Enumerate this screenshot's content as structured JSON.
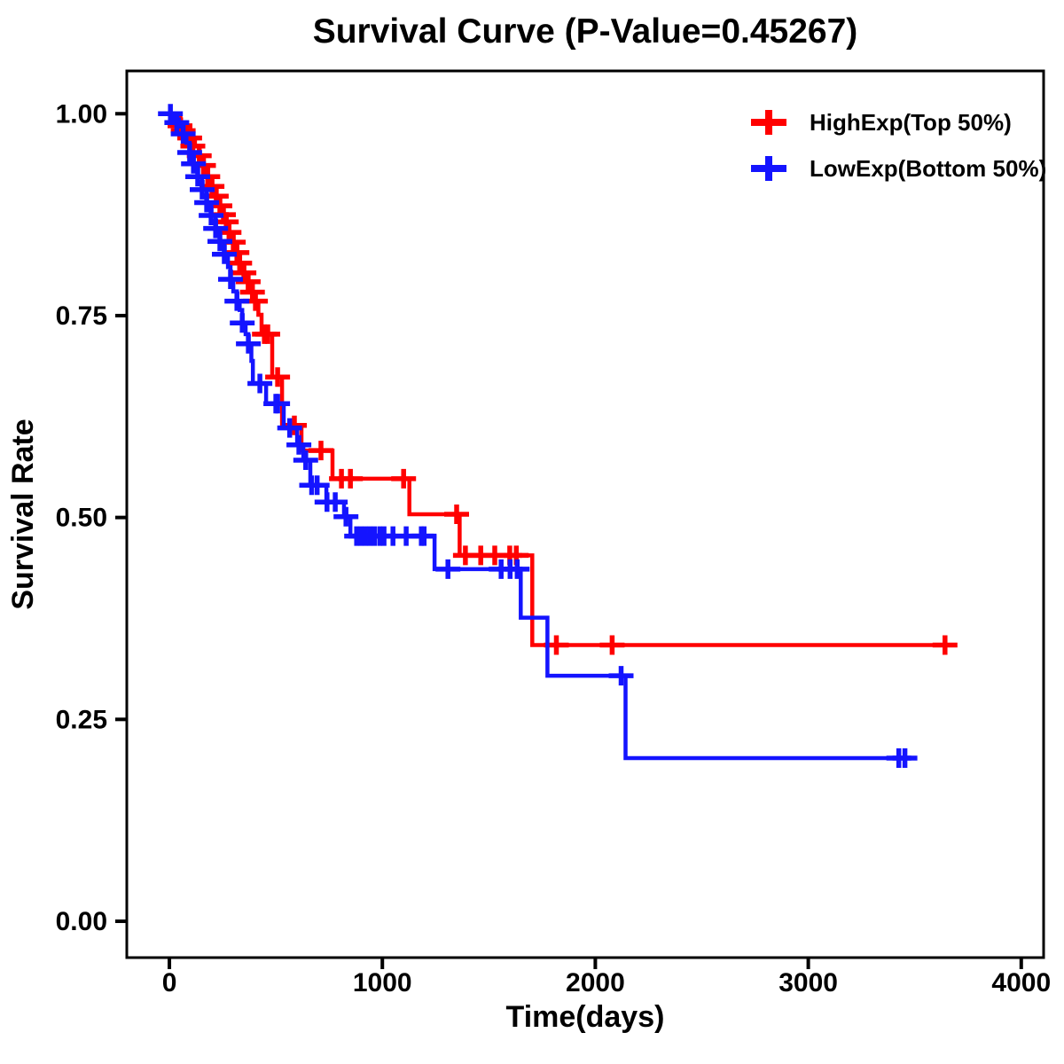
{
  "title": "Survival Curve (P-Value=0.45267)",
  "p_value": "0.45267",
  "background_color": "#FFFFFF",
  "x_axis": {
    "label": "Time(days)",
    "tick_labels": [
      "0",
      "1000",
      "2000",
      "3000",
      "4000"
    ],
    "tick_values": [
      0,
      1000,
      2000,
      3000,
      4000
    ]
  },
  "y_axis": {
    "label": "Survival Rate",
    "tick_labels": [
      "0.00",
      "0.25",
      "0.50",
      "0.75",
      "1.00"
    ],
    "tick_values": [
      0,
      0.25,
      0.5,
      0.75,
      1.0
    ]
  },
  "legend": {
    "position": "top-right-inside",
    "items": [
      {
        "label": "HighExp(Top 50%)",
        "color": "#FF0000",
        "marker": "plus"
      },
      {
        "label": "LowExp(Bottom 50%)",
        "color": "#1414FF",
        "marker": "plus"
      }
    ]
  },
  "chart_data": {
    "type": "line",
    "subtype": "kaplan-meier-step-curve",
    "title": "Survival Curve (P-Value=0.45267)",
    "xlabel": "Time(days)",
    "ylabel": "Survival Rate",
    "xlim": [
      -200,
      4105
    ],
    "ylim": [
      -0.045,
      1.053
    ],
    "grid": false,
    "series": [
      {
        "name": "HighExp(Top 50%)",
        "color": "#FF0000",
        "points": [
          [
            0,
            1.0
          ],
          [
            30,
            0.993
          ],
          [
            55,
            0.985
          ],
          [
            75,
            0.979
          ],
          [
            95,
            0.97
          ],
          [
            120,
            0.96
          ],
          [
            140,
            0.948
          ],
          [
            160,
            0.936
          ],
          [
            180,
            0.922
          ],
          [
            200,
            0.91
          ],
          [
            220,
            0.898
          ],
          [
            237,
            0.886
          ],
          [
            254,
            0.875
          ],
          [
            267,
            0.866
          ],
          [
            280,
            0.853
          ],
          [
            300,
            0.841
          ],
          [
            317,
            0.828
          ],
          [
            330,
            0.815
          ],
          [
            350,
            0.803
          ],
          [
            370,
            0.792
          ],
          [
            390,
            0.779
          ],
          [
            404,
            0.768
          ],
          [
            418,
            0.751
          ],
          [
            433,
            0.727
          ],
          [
            483,
            0.674
          ],
          [
            529,
            0.614
          ],
          [
            620,
            0.583
          ],
          [
            766,
            0.548
          ],
          [
            1127,
            0.504
          ],
          [
            1363,
            0.453
          ],
          [
            1704,
            0.342
          ]
        ],
        "end_time": 3642,
        "censor_marks": [
          [
            50,
            0.985
          ],
          [
            65,
            0.979
          ],
          [
            95,
            0.97
          ],
          [
            110,
            0.96
          ],
          [
            140,
            0.948
          ],
          [
            160,
            0.936
          ],
          [
            180,
            0.922
          ],
          [
            200,
            0.91
          ],
          [
            220,
            0.898
          ],
          [
            237,
            0.886
          ],
          [
            254,
            0.875
          ],
          [
            267,
            0.866
          ],
          [
            280,
            0.853
          ],
          [
            300,
            0.841
          ],
          [
            317,
            0.828
          ],
          [
            330,
            0.815
          ],
          [
            350,
            0.803
          ],
          [
            370,
            0.792
          ],
          [
            390,
            0.779
          ],
          [
            404,
            0.768
          ],
          [
            446,
            0.727
          ],
          [
            462,
            0.727
          ],
          [
            508,
            0.674
          ],
          [
            587,
            0.614
          ],
          [
            712,
            0.583
          ],
          [
            808,
            0.548
          ],
          [
            850,
            0.548
          ],
          [
            1100,
            0.548
          ],
          [
            1349,
            0.504
          ],
          [
            1390,
            0.453
          ],
          [
            1462,
            0.453
          ],
          [
            1528,
            0.453
          ],
          [
            1598,
            0.453
          ],
          [
            1629,
            0.453
          ],
          [
            1817,
            0.342
          ],
          [
            2079,
            0.342
          ],
          [
            3642,
            0.342
          ]
        ]
      },
      {
        "name": "LowExp(Bottom 50%)",
        "color": "#1414FF",
        "points": [
          [
            0,
            1.0
          ],
          [
            20,
            0.993
          ],
          [
            45,
            0.984
          ],
          [
            65,
            0.975
          ],
          [
            80,
            0.964
          ],
          [
            95,
            0.952
          ],
          [
            113,
            0.938
          ],
          [
            133,
            0.922
          ],
          [
            154,
            0.906
          ],
          [
            175,
            0.89
          ],
          [
            196,
            0.874
          ],
          [
            217,
            0.858
          ],
          [
            237,
            0.842
          ],
          [
            258,
            0.826
          ],
          [
            275,
            0.81
          ],
          [
            287,
            0.795
          ],
          [
            300,
            0.78
          ],
          [
            317,
            0.768
          ],
          [
            330,
            0.757
          ],
          [
            342,
            0.741
          ],
          [
            358,
            0.727
          ],
          [
            371,
            0.715
          ],
          [
            385,
            0.694
          ],
          [
            392,
            0.666
          ],
          [
            454,
            0.641
          ],
          [
            537,
            0.611
          ],
          [
            600,
            0.59
          ],
          [
            629,
            0.571
          ],
          [
            662,
            0.54
          ],
          [
            737,
            0.519
          ],
          [
            820,
            0.501
          ],
          [
            850,
            0.477
          ],
          [
            1245,
            0.436
          ],
          [
            1650,
            0.376
          ],
          [
            1775,
            0.304
          ],
          [
            2142,
            0.202
          ]
        ],
        "end_time": 3454,
        "censor_marks": [
          [
            5,
            1.0
          ],
          [
            35,
            0.989
          ],
          [
            65,
            0.975
          ],
          [
            95,
            0.952
          ],
          [
            113,
            0.938
          ],
          [
            133,
            0.922
          ],
          [
            154,
            0.906
          ],
          [
            175,
            0.89
          ],
          [
            196,
            0.874
          ],
          [
            217,
            0.858
          ],
          [
            237,
            0.842
          ],
          [
            258,
            0.826
          ],
          [
            287,
            0.795
          ],
          [
            317,
            0.768
          ],
          [
            342,
            0.741
          ],
          [
            371,
            0.715
          ],
          [
            425,
            0.666
          ],
          [
            500,
            0.641
          ],
          [
            508,
            0.641
          ],
          [
            565,
            0.611
          ],
          [
            608,
            0.59
          ],
          [
            640,
            0.571
          ],
          [
            668,
            0.54
          ],
          [
            694,
            0.54
          ],
          [
            740,
            0.519
          ],
          [
            779,
            0.519
          ],
          [
            829,
            0.501
          ],
          [
            879,
            0.477
          ],
          [
            900,
            0.477
          ],
          [
            921,
            0.477
          ],
          [
            942,
            0.477
          ],
          [
            963,
            0.477
          ],
          [
            988,
            0.477
          ],
          [
            1008,
            0.477
          ],
          [
            1050,
            0.477
          ],
          [
            1112,
            0.477
          ],
          [
            1183,
            0.477
          ],
          [
            1196,
            0.477
          ],
          [
            1308,
            0.436
          ],
          [
            1558,
            0.436
          ],
          [
            1600,
            0.436
          ],
          [
            1633,
            0.436
          ],
          [
            2121,
            0.304
          ],
          [
            3425,
            0.202
          ],
          [
            3454,
            0.202
          ]
        ]
      }
    ]
  }
}
